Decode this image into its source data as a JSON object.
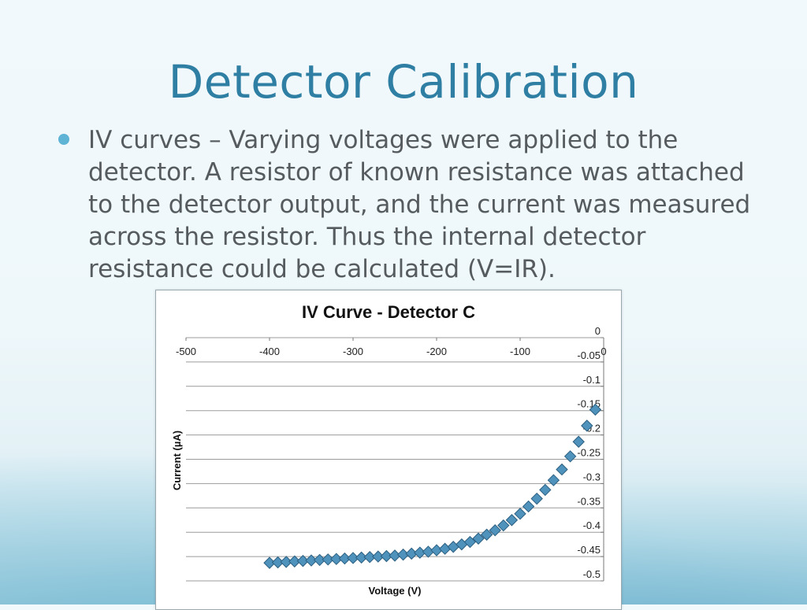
{
  "slide": {
    "title": "Detector Calibration",
    "bullet": "IV curves – Varying voltages were applied to the detector. A resistor of  known resistance was attached to the detector output, and the current was measured across the resistor. Thus the internal detector resistance could be calculated (V=IR)."
  },
  "colors": {
    "title": "#2e7fa3",
    "marker_fill": "#4f93bd",
    "marker_stroke": "#2c5f80",
    "grid": "#9b9b9b"
  },
  "chart_data": {
    "type": "scatter",
    "title": "IV Curve - Detector C",
    "xlabel": "Voltage (V)",
    "ylabel": "Current (µA)",
    "xlim": [
      -500,
      0
    ],
    "ylim": [
      -0.5,
      0
    ],
    "xticks": [
      -500,
      -400,
      -300,
      -200,
      -100,
      0
    ],
    "xtick_labels": [
      "-500",
      "-400",
      "-300",
      "-200",
      "-100",
      "0"
    ],
    "yticks": [
      0,
      -0.05,
      -0.1,
      -0.15,
      -0.2,
      -0.25,
      -0.3,
      -0.35,
      -0.4,
      -0.45,
      -0.5
    ],
    "ytick_labels": [
      "0",
      "-0.05",
      "-0.1",
      "-0.15",
      "-0.2",
      "-0.25",
      "-0.3",
      "-0.35",
      "-0.4",
      "-0.45",
      "-0.5"
    ],
    "grid": true,
    "legend": "none",
    "marker": "diamond",
    "series": [
      {
        "x": [
          -400,
          -390,
          -380,
          -370,
          -360,
          -350,
          -340,
          -330,
          -320,
          -310,
          -300,
          -290,
          -280,
          -270,
          -260,
          -250,
          -240,
          -230,
          -220,
          -210,
          -200,
          -190,
          -180,
          -170,
          -160,
          -150,
          -140,
          -130,
          -120,
          -110,
          -100,
          -90,
          -80,
          -70,
          -60,
          -50,
          -40,
          -30,
          -20,
          -10
        ],
        "y": [
          -0.463,
          -0.462,
          -0.461,
          -0.46,
          -0.459,
          -0.458,
          -0.457,
          -0.456,
          -0.455,
          -0.454,
          -0.453,
          -0.452,
          -0.451,
          -0.45,
          -0.449,
          -0.448,
          -0.446,
          -0.444,
          -0.442,
          -0.44,
          -0.437,
          -0.434,
          -0.43,
          -0.425,
          -0.42,
          -0.413,
          -0.405,
          -0.396,
          -0.386,
          -0.375,
          -0.362,
          -0.347,
          -0.331,
          -0.313,
          -0.293,
          -0.271,
          -0.244,
          -0.214,
          -0.181,
          -0.148
        ]
      }
    ]
  }
}
